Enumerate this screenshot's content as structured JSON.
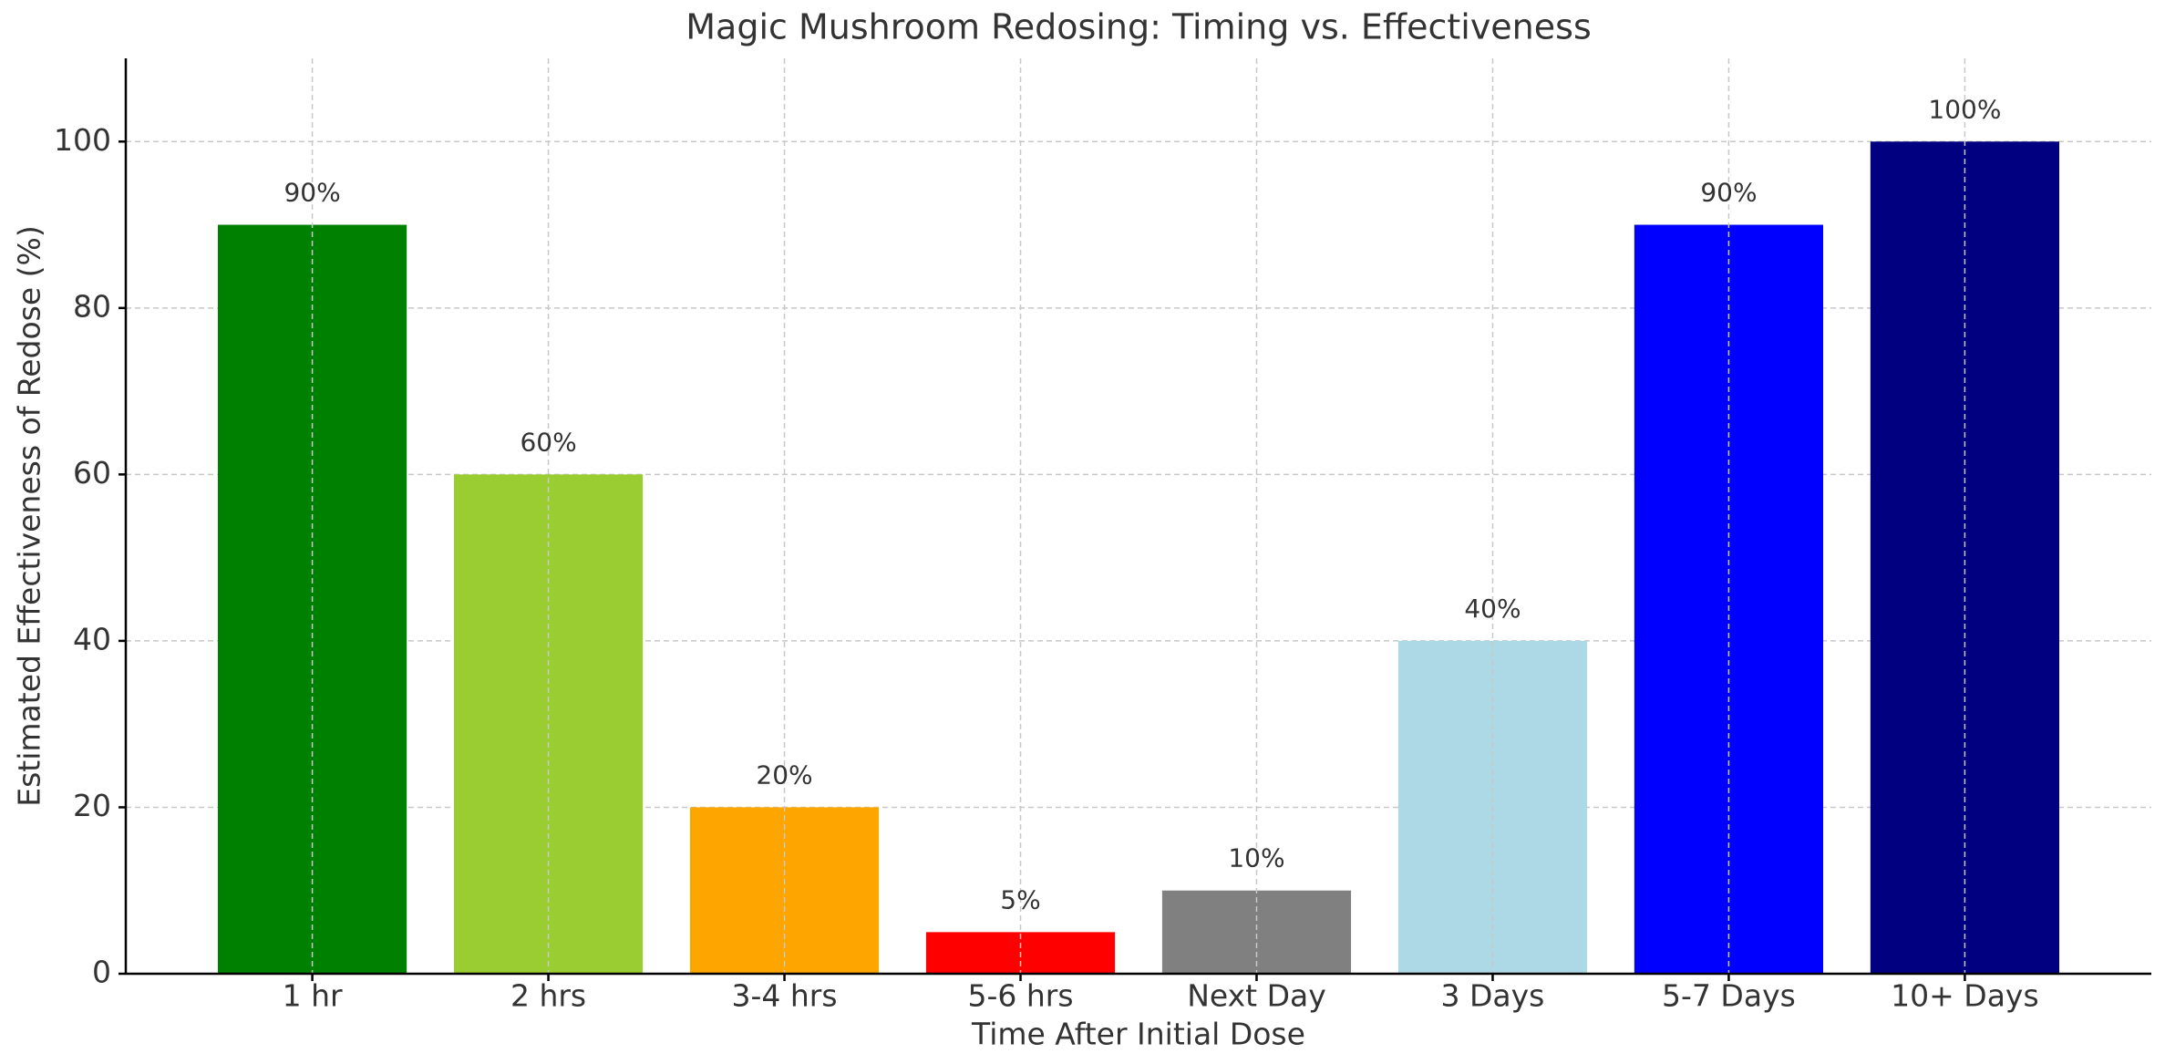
{
  "chart_data": {
    "type": "bar",
    "title": "Magic Mushroom Redosing: Timing vs. Effectiveness",
    "xlabel": "Time After Initial Dose",
    "ylabel": "Estimated Effectiveness of Redose (%)",
    "categories": [
      "1 hr",
      "2 hrs",
      "3-4 hrs",
      "5-6 hrs",
      "Next Day",
      "3 Days",
      "5-7 Days",
      "10+ Days"
    ],
    "values": [
      90,
      60,
      20,
      5,
      10,
      40,
      90,
      100
    ],
    "value_labels": [
      "90%",
      "60%",
      "20%",
      "5%",
      "10%",
      "40%",
      "90%",
      "100%"
    ],
    "colors": [
      "#008000",
      "#9acd32",
      "#ffa500",
      "#ff0000",
      "#808080",
      "#add8e6",
      "#0000ff",
      "#000080"
    ],
    "ylim": [
      0,
      110
    ],
    "yticks": [
      0,
      20,
      40,
      60,
      80,
      100
    ],
    "grid": true
  }
}
